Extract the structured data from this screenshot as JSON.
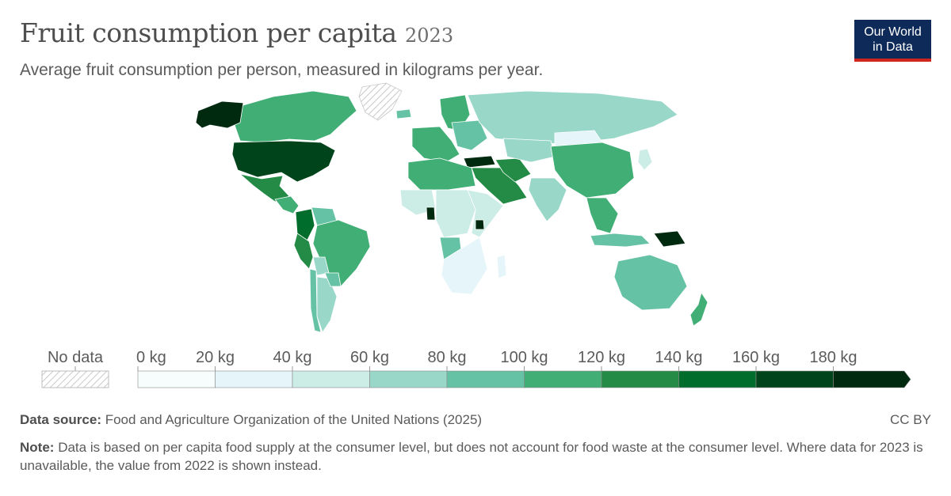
{
  "header": {
    "title": "Fruit consumption per capita",
    "year": "2023",
    "subtitle": "Average fruit consumption per person, measured in kilograms per year."
  },
  "logo": {
    "line1": "Our World",
    "line2": "in Data"
  },
  "legend": {
    "no_data_label": "No data",
    "ticks": [
      "0 kg",
      "20 kg",
      "40 kg",
      "60 kg",
      "80 kg",
      "100 kg",
      "120 kg",
      "140 kg",
      "160 kg",
      "180 kg"
    ],
    "bins": [
      0,
      20,
      40,
      60,
      80,
      100,
      120,
      140,
      160,
      180,
      200
    ],
    "colors": [
      "#f7fcfd",
      "#e5f5f9",
      "#ccece6",
      "#99d8c9",
      "#66c2a4",
      "#41ae76",
      "#238b45",
      "#006d2c",
      "#00441b",
      "#002a10"
    ]
  },
  "footer": {
    "source_label": "Data source:",
    "source_text": "Food and Agriculture Organization of the United Nations (2025)",
    "license": "CC BY",
    "note_label": "Note:",
    "note_text": "Data is based on per capita food supply at the consumer level, but does not account for food waste at the consumer level. Where data for 2023 is unavailable, the value from 2022 is shown instead."
  },
  "map_data": {
    "regions": [
      {
        "name": "Canada",
        "value": 105
      },
      {
        "name": "Alaska",
        "value": 185
      },
      {
        "name": "Greenland",
        "value": null
      },
      {
        "name": "United States",
        "value": 165
      },
      {
        "name": "Mexico",
        "value": 130
      },
      {
        "name": "Central America",
        "value": 115
      },
      {
        "name": "Colombia",
        "value": 145
      },
      {
        "name": "Venezuela",
        "value": 95
      },
      {
        "name": "Brazil",
        "value": 110
      },
      {
        "name": "Peru",
        "value": 120
      },
      {
        "name": "Bolivia",
        "value": 75
      },
      {
        "name": "Argentina",
        "value": 65
      },
      {
        "name": "Chile",
        "value": 85
      },
      {
        "name": "Paraguay",
        "value": 95
      },
      {
        "name": "Iceland",
        "value": 95
      },
      {
        "name": "Western Europe",
        "value": 115
      },
      {
        "name": "Scandinavia",
        "value": 100
      },
      {
        "name": "Eastern Europe",
        "value": 80
      },
      {
        "name": "Russia",
        "value": 70
      },
      {
        "name": "Turkey",
        "value": 185
      },
      {
        "name": "Middle East",
        "value": 120
      },
      {
        "name": "Iran",
        "value": 125
      },
      {
        "name": "Central Asia",
        "value": 70
      },
      {
        "name": "Mongolia",
        "value": 20
      },
      {
        "name": "China",
        "value": 110
      },
      {
        "name": "India",
        "value": 70
      },
      {
        "name": "Southeast Asia",
        "value": 110
      },
      {
        "name": "Japan",
        "value": 40
      },
      {
        "name": "Indonesia",
        "value": 80
      },
      {
        "name": "Papua New Guinea",
        "value": 185
      },
      {
        "name": "Australia",
        "value": 90
      },
      {
        "name": "New Zealand",
        "value": 105
      },
      {
        "name": "North Africa",
        "value": 105
      },
      {
        "name": "West Africa",
        "value": 40
      },
      {
        "name": "Ghana",
        "value": 185
      },
      {
        "name": "Central Africa",
        "value": 50
      },
      {
        "name": "East Africa",
        "value": 45
      },
      {
        "name": "Uganda",
        "value": 180
      },
      {
        "name": "Angola",
        "value": 90
      },
      {
        "name": "Southern Africa",
        "value": 35
      },
      {
        "name": "Madagascar",
        "value": 35
      }
    ]
  }
}
